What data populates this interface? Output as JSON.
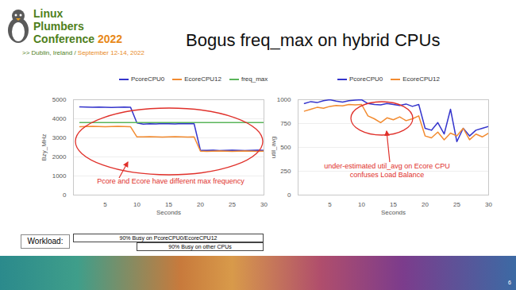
{
  "slide": {
    "logo": {
      "lines": [
        "Linux",
        "Plumbers",
        "Conference"
      ],
      "year": "2022",
      "location": ">> Dublin, Ireland /",
      "dates": "September 12-14, 2022"
    },
    "title": "Bogus freq_max on hybrid CPUs",
    "page_number": 6
  },
  "chart_data": [
    {
      "type": "line",
      "x_label": "Seconds",
      "y_label": "Bzy_MHz",
      "x": [
        1,
        2,
        3,
        4,
        5,
        6,
        7,
        8,
        9,
        10,
        11,
        12,
        13,
        14,
        15,
        16,
        17,
        18,
        19,
        20,
        21,
        22,
        23,
        24,
        25,
        26,
        27,
        28,
        29,
        30
      ],
      "series": [
        {
          "name": "PcoreCPU0",
          "color": "#3535cc",
          "values": [
            4620,
            4610,
            4600,
            4610,
            4600,
            4590,
            4600,
            4610,
            4600,
            3780,
            3720,
            3740,
            3730,
            3750,
            3740,
            3730,
            3750,
            3740,
            3740,
            2350,
            2340,
            2350,
            2330,
            2340,
            2350,
            2340,
            2330,
            2340,
            2350,
            2340
          ]
        },
        {
          "name": "EcoreCPU12",
          "color": "#f28b30",
          "values": [
            3580,
            3590,
            3600,
            3590,
            3580,
            3590,
            3600,
            3590,
            3580,
            3050,
            3050,
            3060,
            3050,
            3040,
            3050,
            3060,
            3050,
            3040,
            3050,
            2300,
            2290,
            2300,
            2310,
            2300,
            2290,
            2300,
            2310,
            2300,
            2290,
            2300
          ]
        },
        {
          "name": "freq_max",
          "color": "#5ab55a",
          "values": [
            3800,
            3800,
            3800,
            3800,
            3800,
            3800,
            3800,
            3800,
            3800,
            3800,
            3800,
            3800,
            3800,
            3800,
            3800,
            3800,
            3800,
            3800,
            3800,
            3800,
            3800,
            3800,
            3800,
            3800,
            3800,
            3800,
            3800,
            3800,
            3800,
            3800
          ]
        }
      ],
      "xlim": [
        0,
        30
      ],
      "xticks": [
        5,
        10,
        15,
        20,
        25,
        30
      ],
      "ylim": [
        0,
        5000
      ],
      "yticks": [
        0,
        1000,
        2000,
        3000,
        4000,
        5000
      ],
      "grid": true,
      "legend": "top",
      "annotations": [
        {
          "text": [
            "Pcore and Ecore have different max frequency"
          ]
        }
      ]
    },
    {
      "type": "line",
      "x_label": "Seconds",
      "y_label": "util_avg",
      "x": [
        1,
        2,
        3,
        4,
        5,
        6,
        7,
        8,
        9,
        10,
        11,
        12,
        13,
        14,
        15,
        16,
        17,
        18,
        19,
        20,
        21,
        22,
        23,
        24,
        25,
        26,
        27,
        28,
        29,
        30
      ],
      "series": [
        {
          "name": "PcoreCPU0",
          "color": "#3535cc",
          "values": [
            960,
            980,
            970,
            990,
            1000,
            985,
            975,
            990,
            995,
            1000,
            960,
            950,
            945,
            960,
            950,
            940,
            955,
            930,
            950,
            700,
            680,
            760,
            640,
            900,
            560,
            700,
            620,
            680,
            700,
            720
          ]
        },
        {
          "name": "EcoreCPU12",
          "color": "#f28b30",
          "values": [
            880,
            900,
            920,
            910,
            930,
            940,
            935,
            950,
            945,
            950,
            830,
            800,
            760,
            810,
            790,
            820,
            780,
            800,
            830,
            620,
            600,
            660,
            580,
            650,
            620,
            700,
            580,
            640,
            610,
            650
          ]
        }
      ],
      "xlim": [
        0,
        30
      ],
      "xticks": [
        5,
        10,
        15,
        20,
        25,
        30
      ],
      "ylim": [
        0,
        1000
      ],
      "yticks": [
        0,
        250,
        500,
        750,
        1000
      ],
      "grid": true,
      "legend": "top",
      "annotations": [
        {
          "text": [
            "under-estimated util_avg on Ecore CPU",
            "confuses Load Balance"
          ]
        }
      ]
    }
  ],
  "workload": {
    "label": "Workload:",
    "bars": [
      {
        "label": "90% Busy on PcoreCPU0/EcoreCPU12",
        "start": 0,
        "end": 30
      },
      {
        "label": "90% Busy on other CPUs",
        "start": 10,
        "end": 30
      }
    ]
  }
}
